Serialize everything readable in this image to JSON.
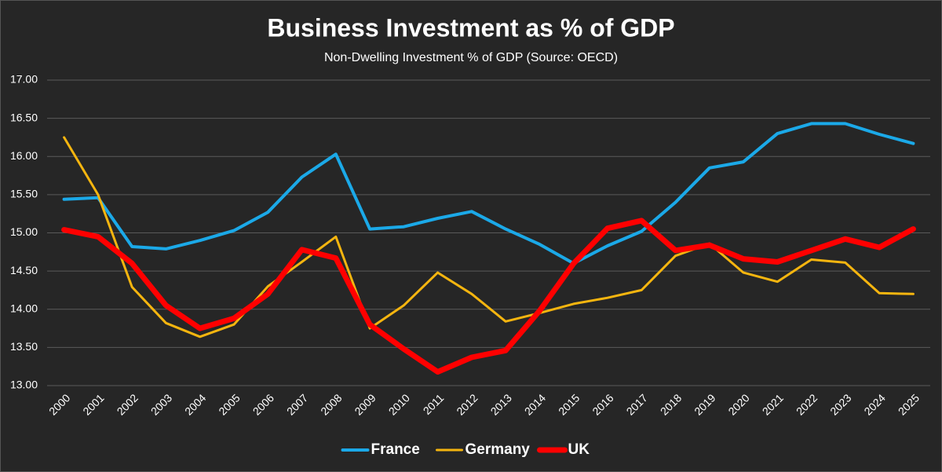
{
  "chart_data": {
    "type": "line",
    "title": "Business Investment as % of GDP",
    "subtitle": "Non-Dwelling Investment % of GDP (Source: OECD)",
    "categories": [
      "2000",
      "2001",
      "2002",
      "2003",
      "2004",
      "2005",
      "2006",
      "2007",
      "2008",
      "2009",
      "2010",
      "2011",
      "2012",
      "2013",
      "2014",
      "2015",
      "2016",
      "2017",
      "2018",
      "2019",
      "2020",
      "2021",
      "2022",
      "2023",
      "2024",
      "2025"
    ],
    "series": [
      {
        "name": "France",
        "color": "#1ba9e8",
        "width": 4,
        "values": [
          15.44,
          15.46,
          14.82,
          14.79,
          14.9,
          15.03,
          15.27,
          15.73,
          16.03,
          15.05,
          15.08,
          15.19,
          15.28,
          15.05,
          14.85,
          14.6,
          14.83,
          15.02,
          15.4,
          15.85,
          15.93,
          16.3,
          16.43,
          16.43,
          16.29,
          16.17
        ]
      },
      {
        "name": "Germany",
        "color": "#f5b50f",
        "width": 3,
        "values": [
          16.25,
          15.5,
          14.29,
          13.82,
          13.64,
          13.8,
          14.3,
          14.62,
          14.95,
          13.75,
          14.05,
          14.48,
          14.2,
          13.84,
          13.95,
          14.07,
          14.15,
          14.25,
          14.7,
          14.86,
          14.48,
          14.36,
          14.65,
          14.61,
          14.21,
          14.2
        ]
      },
      {
        "name": "UK",
        "color": "#ff0000",
        "width": 7,
        "values": [
          15.04,
          14.95,
          14.6,
          14.05,
          13.75,
          13.88,
          14.2,
          14.78,
          14.67,
          13.8,
          13.48,
          13.18,
          13.37,
          13.46,
          13.98,
          14.6,
          15.06,
          15.16,
          14.77,
          14.84,
          14.66,
          14.62,
          14.77,
          14.92,
          14.81,
          15.05
        ]
      }
    ],
    "ylim": [
      13,
      17
    ],
    "yticks": [
      {
        "value": 13,
        "label": "13.00"
      },
      {
        "value": 13.5,
        "label": "13.50"
      },
      {
        "value": 14,
        "label": "14.00"
      },
      {
        "value": 14.5,
        "label": "14.50"
      },
      {
        "value": 15,
        "label": "15.00"
      },
      {
        "value": 15.5,
        "label": "15.50"
      },
      {
        "value": 16,
        "label": "16.00"
      },
      {
        "value": 16.5,
        "label": "16.50"
      },
      {
        "value": 17,
        "label": "17.00"
      }
    ],
    "grid": true,
    "legend": "bottom"
  }
}
